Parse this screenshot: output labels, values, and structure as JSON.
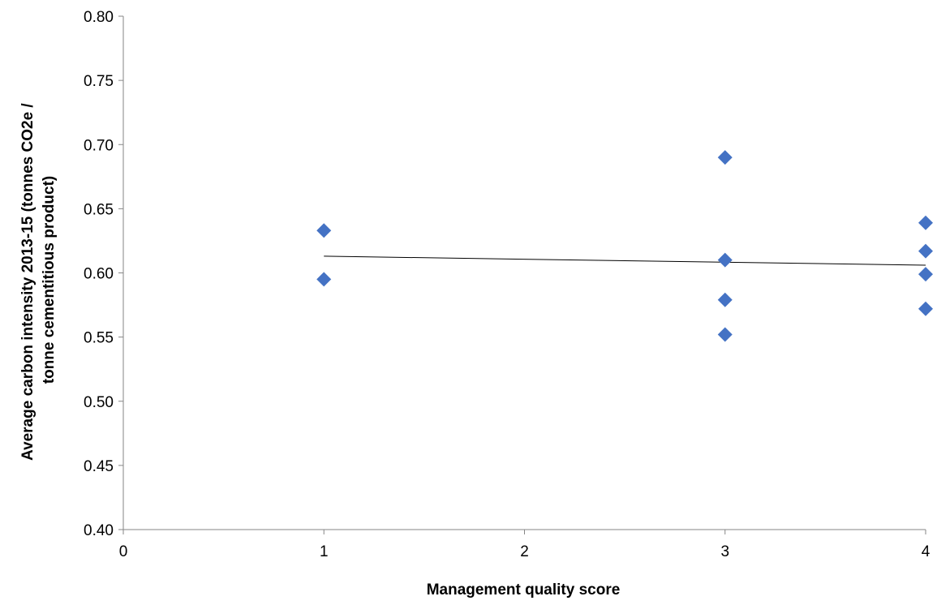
{
  "chart_data": {
    "type": "scatter",
    "title": "",
    "xlabel": "Management quality score",
    "ylabel_lines": [
      "Average carbon intensity 2013-15 (tonnes CO2e /",
      "tonne cementitious product)"
    ],
    "xlim": [
      0,
      4
    ],
    "ylim": [
      0.4,
      0.8
    ],
    "x_ticks": [
      "0",
      "1",
      "2",
      "3",
      "4"
    ],
    "y_ticks": [
      "0.40",
      "0.45",
      "0.50",
      "0.55",
      "0.60",
      "0.65",
      "0.70",
      "0.75",
      "0.80"
    ],
    "grid": false,
    "legend": "none",
    "marker_color": "#4472C4",
    "trendline_color": "#000000",
    "series": [
      {
        "points": [
          {
            "x": 1,
            "y": 0.633
          },
          {
            "x": 1,
            "y": 0.595
          },
          {
            "x": 3,
            "y": 0.69
          },
          {
            "x": 3,
            "y": 0.61
          },
          {
            "x": 3,
            "y": 0.579
          },
          {
            "x": 3,
            "y": 0.552
          },
          {
            "x": 4,
            "y": 0.639
          },
          {
            "x": 4,
            "y": 0.617
          },
          {
            "x": 4,
            "y": 0.599
          },
          {
            "x": 4,
            "y": 0.572
          }
        ]
      }
    ],
    "trendline": {
      "type": "linear",
      "x": [
        1,
        4
      ],
      "y": [
        0.613,
        0.606
      ]
    }
  }
}
